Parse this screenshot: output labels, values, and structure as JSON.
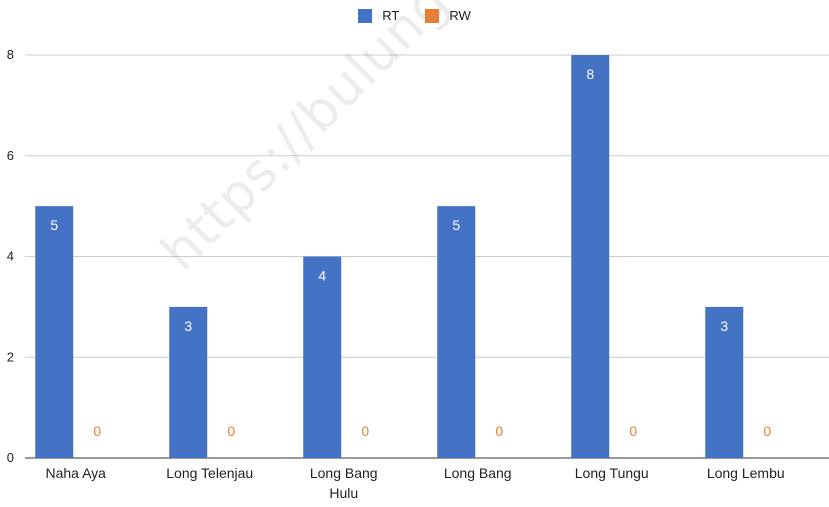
{
  "chart_data": {
    "type": "bar",
    "categories": [
      "Naha Aya",
      "Long Telenjau",
      "Long Bang Hulu",
      "Long Bang",
      "Long Tungu",
      "Long Lembu"
    ],
    "series": [
      {
        "name": "RT",
        "values": [
          5,
          3,
          4,
          5,
          8,
          3
        ],
        "color": "#4472c4"
      },
      {
        "name": "RW",
        "values": [
          0,
          0,
          0,
          0,
          0,
          0
        ],
        "color": "#ed7d31"
      }
    ],
    "ylim": [
      0,
      8
    ],
    "yticks": [
      0,
      2,
      4,
      6,
      8
    ],
    "grid": true,
    "legend": "top-center"
  },
  "watermark": "https://bulungankab.bps.go.id"
}
